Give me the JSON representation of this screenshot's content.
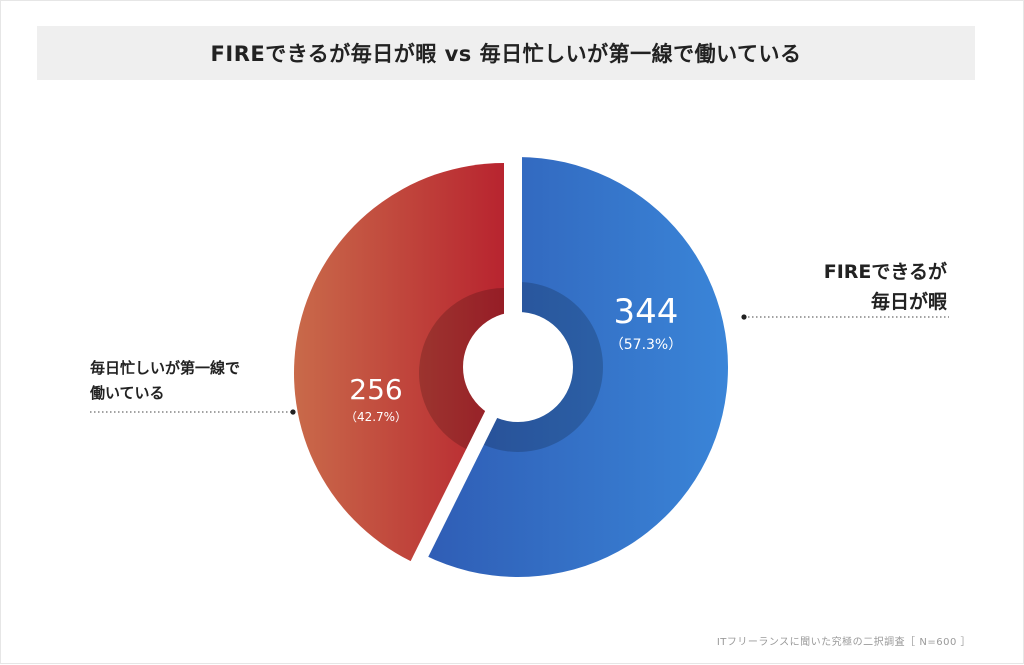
{
  "title": "FIREできるが毎日が暇 vs 毎日忙しいが第一線で働いている",
  "footer": "ITフリーランスに聞いた究極の二択調査［ N=600 ］",
  "chart_data": {
    "type": "pie",
    "style": "donut",
    "title": "FIREできるが毎日が暇 vs 毎日忙しいが第一線で働いている",
    "total": 600,
    "slices": [
      {
        "label_lines": [
          "FIREできるが",
          "毎日が暇"
        ],
        "value": 344,
        "value_label": "344",
        "percent": 57.3,
        "percent_label": "（57.3%）",
        "color_start": "#2f5db5",
        "color_end": "#3a85d8"
      },
      {
        "label_lines": [
          "毎日忙しいが第一線で",
          "働いている"
        ],
        "value": 256,
        "value_label": "256",
        "percent": 42.7,
        "percent_label": "（42.7%）",
        "color_start": "#c96a4a",
        "color_end": "#b8242f"
      }
    ],
    "legend": "none",
    "labels_placement": "outside-callout"
  }
}
